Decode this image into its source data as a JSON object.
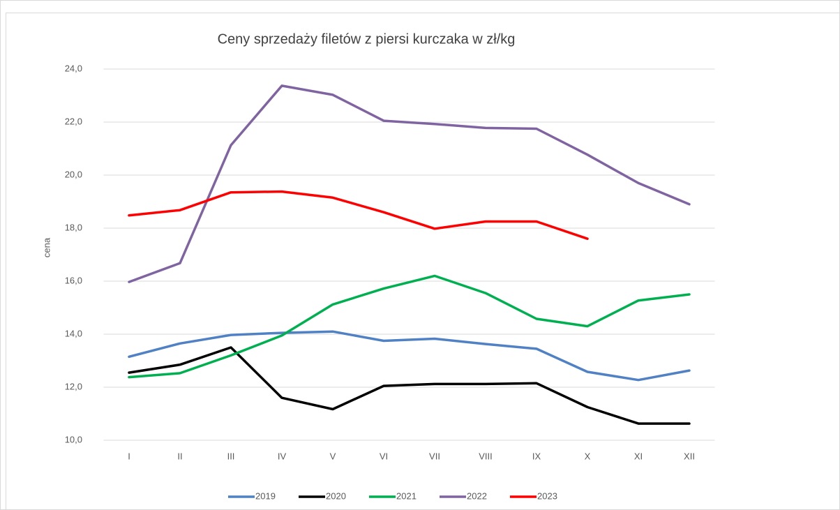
{
  "chart_data": {
    "type": "line",
    "title": "Ceny sprzedaży filetów z piersi kurczaka w zł/kg",
    "y_label": "cena",
    "categories": [
      "I",
      "II",
      "III",
      "IV",
      "V",
      "VI",
      "VII",
      "VIII",
      "IX",
      "X",
      "XI",
      "XII"
    ],
    "series": [
      {
        "name": "2019",
        "color": "#4f81c4",
        "values": [
          13.15,
          13.65,
          13.97,
          14.05,
          14.1,
          13.75,
          13.83,
          13.63,
          13.45,
          12.58,
          12.27,
          12.63
        ]
      },
      {
        "name": "2020",
        "color": "#000000",
        "values": [
          12.55,
          12.85,
          13.5,
          11.6,
          11.17,
          12.05,
          12.12,
          12.12,
          12.15,
          11.25,
          10.63,
          10.63
        ]
      },
      {
        "name": "2021",
        "color": "#00b050",
        "values": [
          12.38,
          12.53,
          13.2,
          13.95,
          15.12,
          15.72,
          16.2,
          15.55,
          14.58,
          14.3,
          15.27,
          15.5
        ]
      },
      {
        "name": "2022",
        "color": "#8064a2",
        "values": [
          15.97,
          16.68,
          21.13,
          23.37,
          23.03,
          22.05,
          21.93,
          21.78,
          21.75,
          20.77,
          19.7,
          18.9
        ]
      },
      {
        "name": "2023",
        "color": "#ff0000",
        "values": [
          18.48,
          18.68,
          19.35,
          19.38,
          19.15,
          18.6,
          17.98,
          18.25,
          18.25,
          17.6,
          null,
          null
        ]
      }
    ],
    "ylim": [
      10,
      24
    ],
    "yticks": [
      {
        "value": 10,
        "label": "10,0"
      },
      {
        "value": 12,
        "label": "12,0"
      },
      {
        "value": 14,
        "label": "14,0"
      },
      {
        "value": 16,
        "label": "16,0"
      },
      {
        "value": 18,
        "label": "18,0"
      },
      {
        "value": 20,
        "label": "20,0"
      },
      {
        "value": 22,
        "label": "22,0"
      },
      {
        "value": 24,
        "label": "24,0"
      }
    ],
    "grid": true,
    "legend": "bottom"
  }
}
